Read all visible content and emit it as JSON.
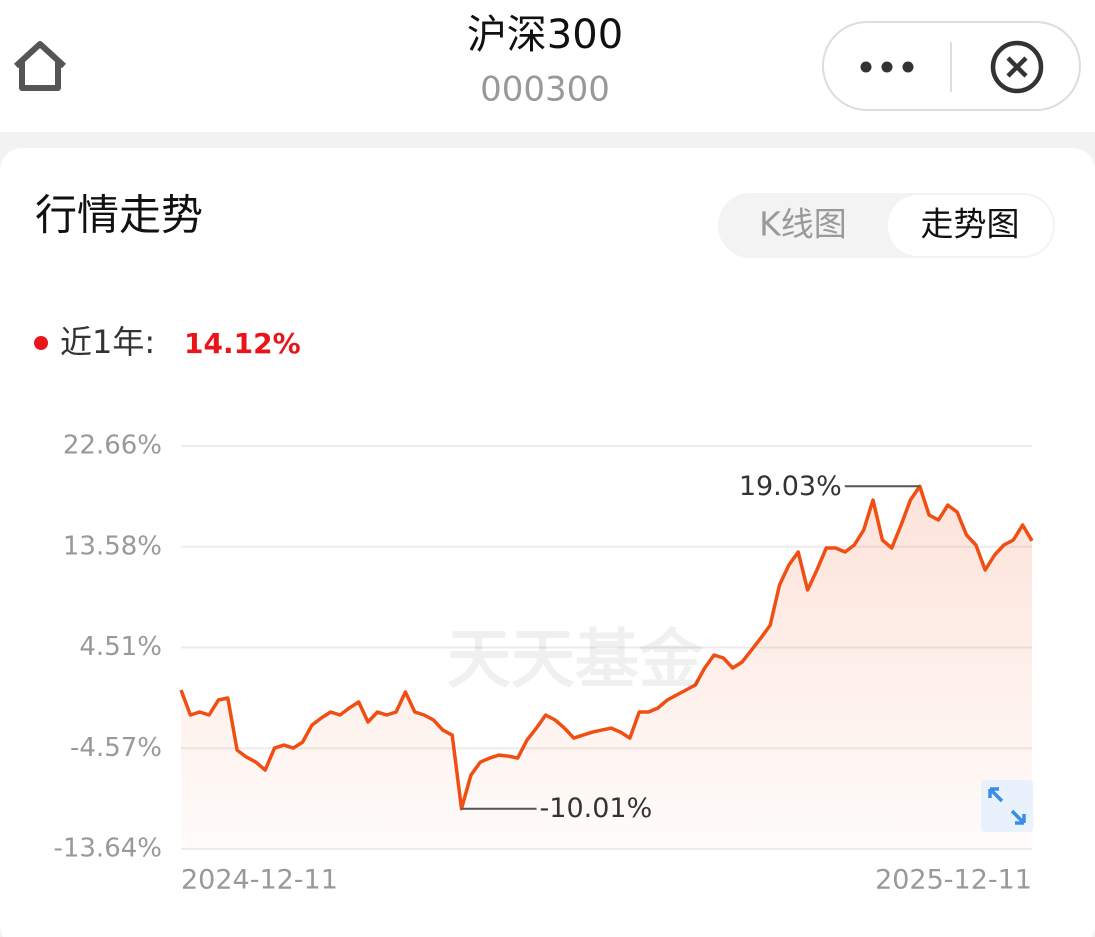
{
  "header": {
    "title": "沪深300",
    "code": "000300"
  },
  "card": {
    "title": "行情走势",
    "tabs": [
      "K线图",
      "走势图"
    ]
  },
  "summary": {
    "label": "近1年:",
    "value": "14.12%"
  },
  "watermark": "天天基金",
  "chart_data": {
    "type": "line",
    "categories": [
      "2024-12-11",
      null,
      null,
      null,
      null,
      null,
      null,
      null,
      null,
      null,
      null,
      null,
      null,
      null,
      null,
      null,
      null,
      null,
      null,
      null,
      null,
      null,
      null,
      null,
      null,
      null,
      null,
      null,
      null,
      null,
      null,
      null,
      null,
      null,
      null,
      null,
      null,
      null,
      null,
      null,
      null,
      null,
      null,
      null,
      null,
      null,
      null,
      null,
      null,
      null,
      null,
      null,
      null,
      null,
      null,
      null,
      null,
      null,
      null,
      null,
      null,
      null,
      null,
      null,
      null,
      null,
      null,
      null,
      null,
      null,
      null,
      null,
      null,
      null,
      null,
      null,
      null,
      null,
      null,
      null,
      null,
      null,
      null,
      null,
      null,
      null,
      null,
      null,
      null,
      null,
      null,
      "2025-12-11"
    ],
    "series": [
      {
        "color": "#f04e12",
        "values": [
          0.68,
          -1.57,
          -1.3,
          -1.57,
          -0.22,
          -0.04,
          -4.73,
          -5.36,
          -5.81,
          -6.53,
          -4.55,
          -4.28,
          -4.55,
          -4.01,
          -2.48,
          -1.84,
          -1.3,
          -1.57,
          -0.94,
          -0.4,
          -2.2,
          -1.3,
          -1.57,
          -1.3,
          0.5,
          -1.3,
          -1.57,
          -2.02,
          -2.93,
          -3.38,
          -10.01,
          -6.98,
          -5.81,
          -5.45,
          -5.18,
          -5.27,
          -5.45,
          -3.83,
          -2.75,
          -1.57,
          -2.02,
          -2.75,
          -3.65,
          -3.38,
          -3.11,
          -2.93,
          -2.75,
          -3.11,
          -3.65,
          -1.3,
          -1.3,
          -0.94,
          -0.22,
          0.23,
          0.68,
          1.13,
          2.66,
          3.83,
          3.56,
          2.66,
          3.2,
          4.28,
          5.36,
          6.53,
          10.14,
          11.94,
          13.11,
          9.69,
          11.49,
          13.47,
          13.47,
          13.11,
          13.74,
          15.09,
          17.8,
          14.19,
          13.47,
          15.54,
          17.8,
          19.03,
          16.44,
          15.99,
          17.34,
          16.71,
          14.64,
          13.74,
          11.49,
          12.84,
          13.74,
          14.19,
          15.54,
          14.12
        ]
      }
    ],
    "max_label": "19.03%",
    "min_label": "-10.01%",
    "ylim": [
      -13.64,
      22.66
    ],
    "yticks": [
      {
        "value": -13.64,
        "label": "-13.64%"
      },
      {
        "value": -4.57,
        "label": "-4.57%"
      },
      {
        "value": 4.51,
        "label": "4.51%"
      },
      {
        "value": 13.58,
        "label": "13.58%"
      },
      {
        "value": 22.66,
        "label": "22.66%"
      }
    ],
    "grid": true
  }
}
